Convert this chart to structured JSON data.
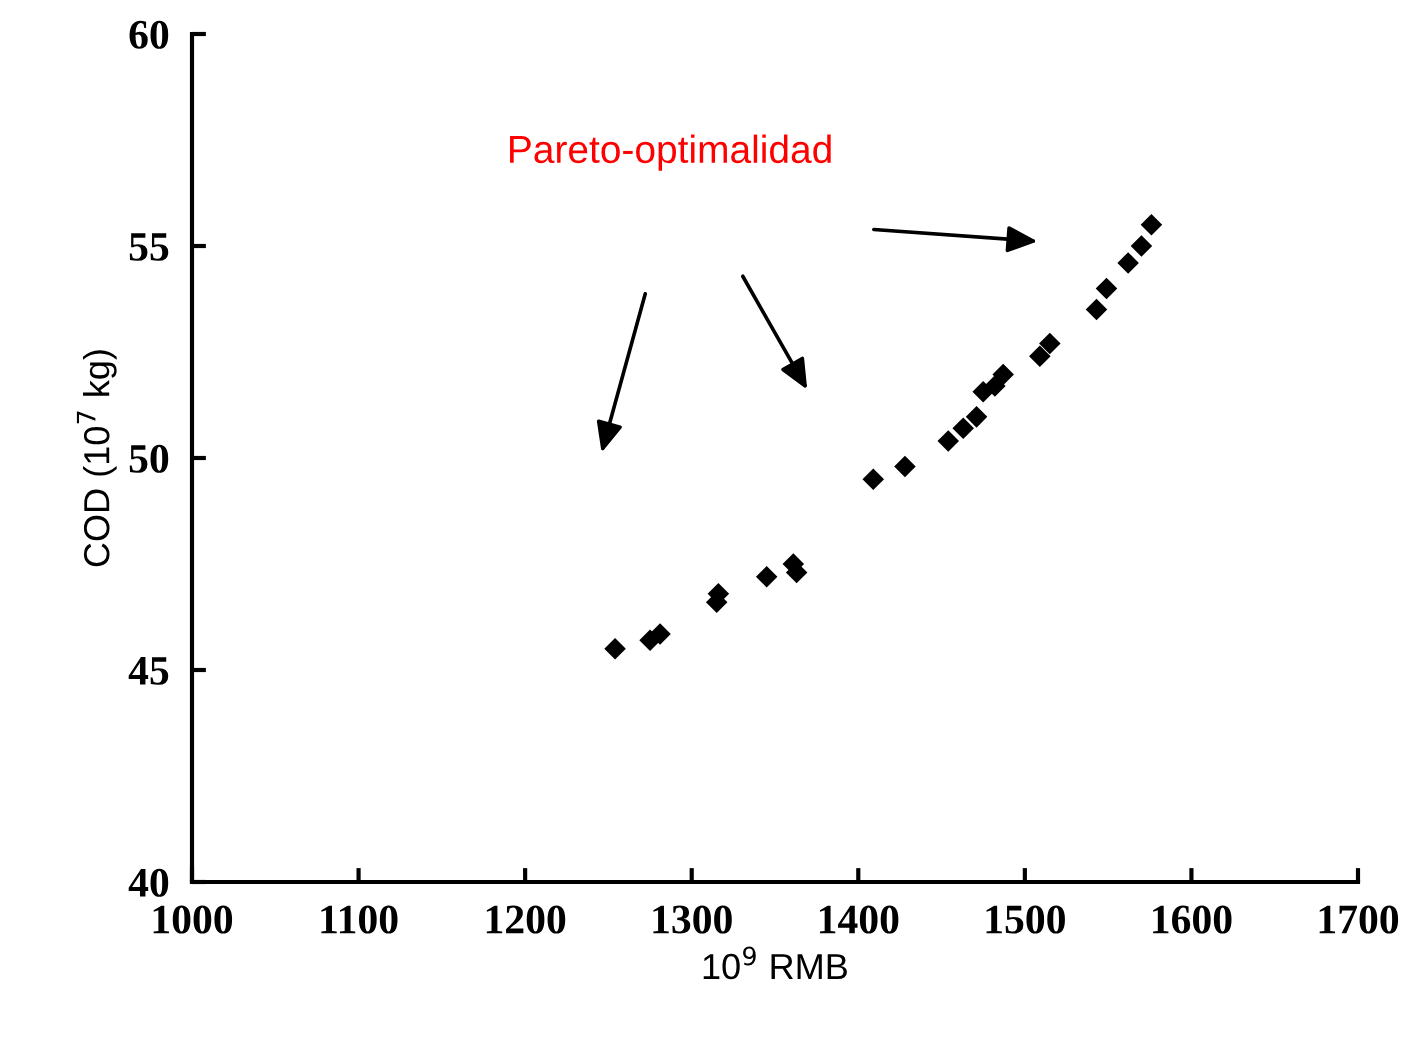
{
  "chart_data": {
    "type": "scatter",
    "xlabel": "10$^{9}$ RMB",
    "ylabel": "COD (10$^{7}$ kg)",
    "annotations": [
      "Pareto-optimalidad"
    ],
    "x": [
      1254,
      1275,
      1281,
      1315,
      1316,
      1345,
      1357,
      1361,
      1363,
      1409,
      1428,
      1454,
      1463,
      1471,
      1475,
      1482,
      1487,
      1509,
      1515,
      1543,
      1549,
      1562,
      1570,
      1576
    ],
    "series": [
      {
        "color": "#000000",
        "values": [
          45.5,
          45.7,
          45.85,
          46.6,
          46.8,
          47.2,
          null,
          47.5,
          47.3,
          49.5,
          49.8,
          50.4,
          50.7,
          50.97,
          51.56,
          51.7,
          51.97,
          52.4,
          52.7,
          53.5,
          54.0,
          54.6,
          55.0,
          55.5
        ]
      }
    ],
    "marker": "diamond",
    "xlim": [
      1000,
      1700
    ],
    "xticks": [
      1000,
      1100,
      1200,
      1300,
      1400,
      1500,
      1600,
      1700
    ],
    "ylim": [
      40,
      60
    ],
    "yticks": [
      40,
      45,
      50,
      55,
      60
    ],
    "grid": false,
    "legend": false
  }
}
